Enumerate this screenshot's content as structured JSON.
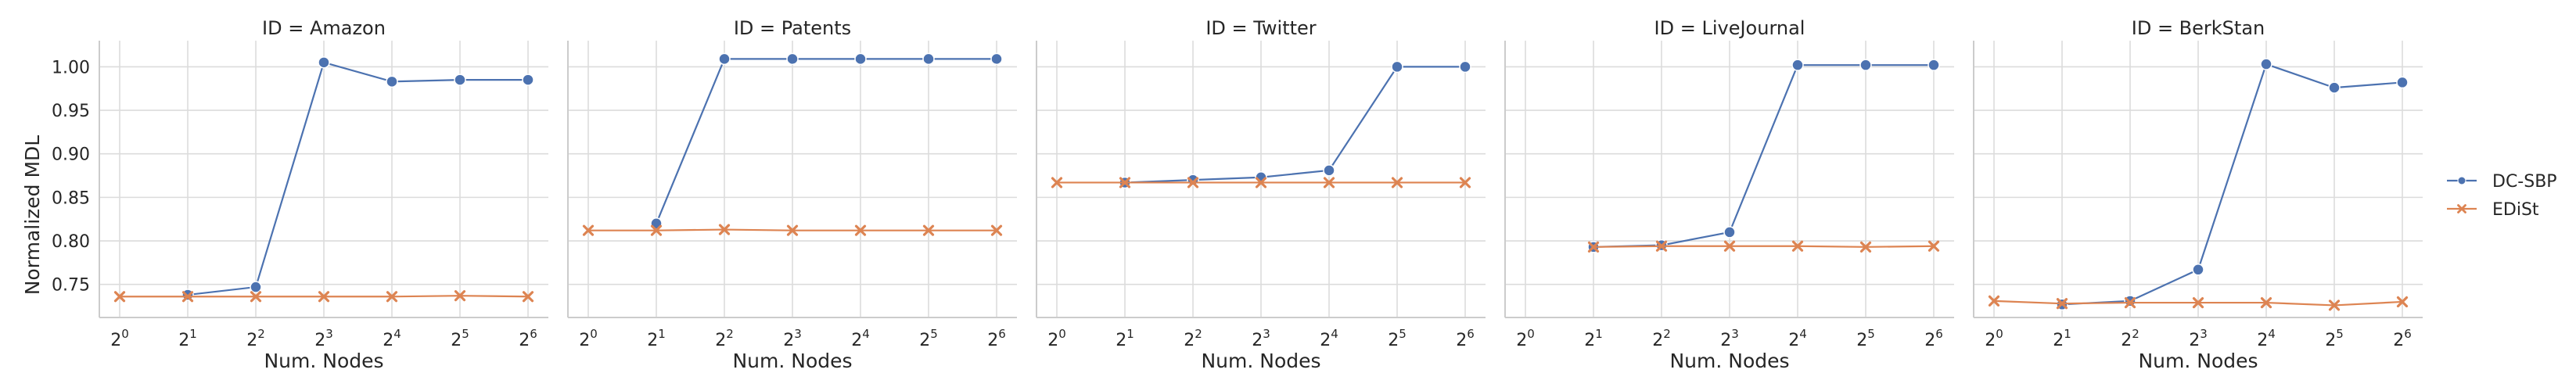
{
  "chart_data": {
    "type": "line",
    "ylabel": "Normalized MDL",
    "xlabel": "Num. Nodes",
    "x_ticks": [
      {
        "base": "2",
        "exp": "0"
      },
      {
        "base": "2",
        "exp": "1"
      },
      {
        "base": "2",
        "exp": "2"
      },
      {
        "base": "2",
        "exp": "3"
      },
      {
        "base": "2",
        "exp": "4"
      },
      {
        "base": "2",
        "exp": "5"
      },
      {
        "base": "2",
        "exp": "6"
      }
    ],
    "y_ticks": [
      "0.75",
      "0.80",
      "0.85",
      "0.90",
      "0.95",
      "1.00"
    ],
    "ylim": [
      0.712,
      1.03
    ],
    "x_values": [
      1,
      2,
      4,
      8,
      16,
      32,
      64
    ],
    "x_scale": "log2",
    "grid": true,
    "legend_position": "right",
    "series_styles": [
      {
        "name": "DC-SBP",
        "color": "#4c72b0",
        "marker": "circle"
      },
      {
        "name": "EDiSt",
        "color": "#dd8452",
        "marker": "x"
      }
    ],
    "panels": [
      {
        "title": "ID = Amazon",
        "series": [
          {
            "name": "DC-SBP",
            "values": [
              null,
              0.738,
              0.747,
              1.005,
              0.983,
              0.985,
              0.985
            ]
          },
          {
            "name": "EDiSt",
            "values": [
              0.736,
              0.736,
              0.736,
              0.736,
              0.736,
              0.737,
              0.736
            ]
          }
        ]
      },
      {
        "title": "ID = Patents",
        "series": [
          {
            "name": "DC-SBP",
            "values": [
              null,
              0.82,
              1.009,
              1.009,
              1.009,
              1.009,
              1.009
            ]
          },
          {
            "name": "EDiSt",
            "values": [
              0.812,
              0.812,
              0.813,
              0.812,
              0.812,
              0.812,
              0.812
            ]
          }
        ]
      },
      {
        "title": "ID = Twitter",
        "series": [
          {
            "name": "DC-SBP",
            "values": [
              null,
              0.867,
              0.87,
              0.873,
              0.881,
              1.0,
              1.0
            ]
          },
          {
            "name": "EDiSt",
            "values": [
              0.867,
              0.867,
              0.867,
              0.867,
              0.867,
              0.867,
              0.867
            ]
          }
        ]
      },
      {
        "title": "ID = LiveJournal",
        "series": [
          {
            "name": "DC-SBP",
            "values": [
              null,
              0.793,
              0.795,
              0.81,
              1.002,
              1.002,
              1.002
            ]
          },
          {
            "name": "EDiSt",
            "values": [
              null,
              0.793,
              0.794,
              0.794,
              0.794,
              0.793,
              0.794
            ]
          }
        ]
      },
      {
        "title": "ID = BerkStan",
        "series": [
          {
            "name": "DC-SBP",
            "values": [
              null,
              0.727,
              0.731,
              0.767,
              1.003,
              0.976,
              0.982
            ]
          },
          {
            "name": "EDiSt",
            "values": [
              0.731,
              0.728,
              0.729,
              0.729,
              0.729,
              0.726,
              0.73
            ]
          }
        ]
      }
    ]
  }
}
